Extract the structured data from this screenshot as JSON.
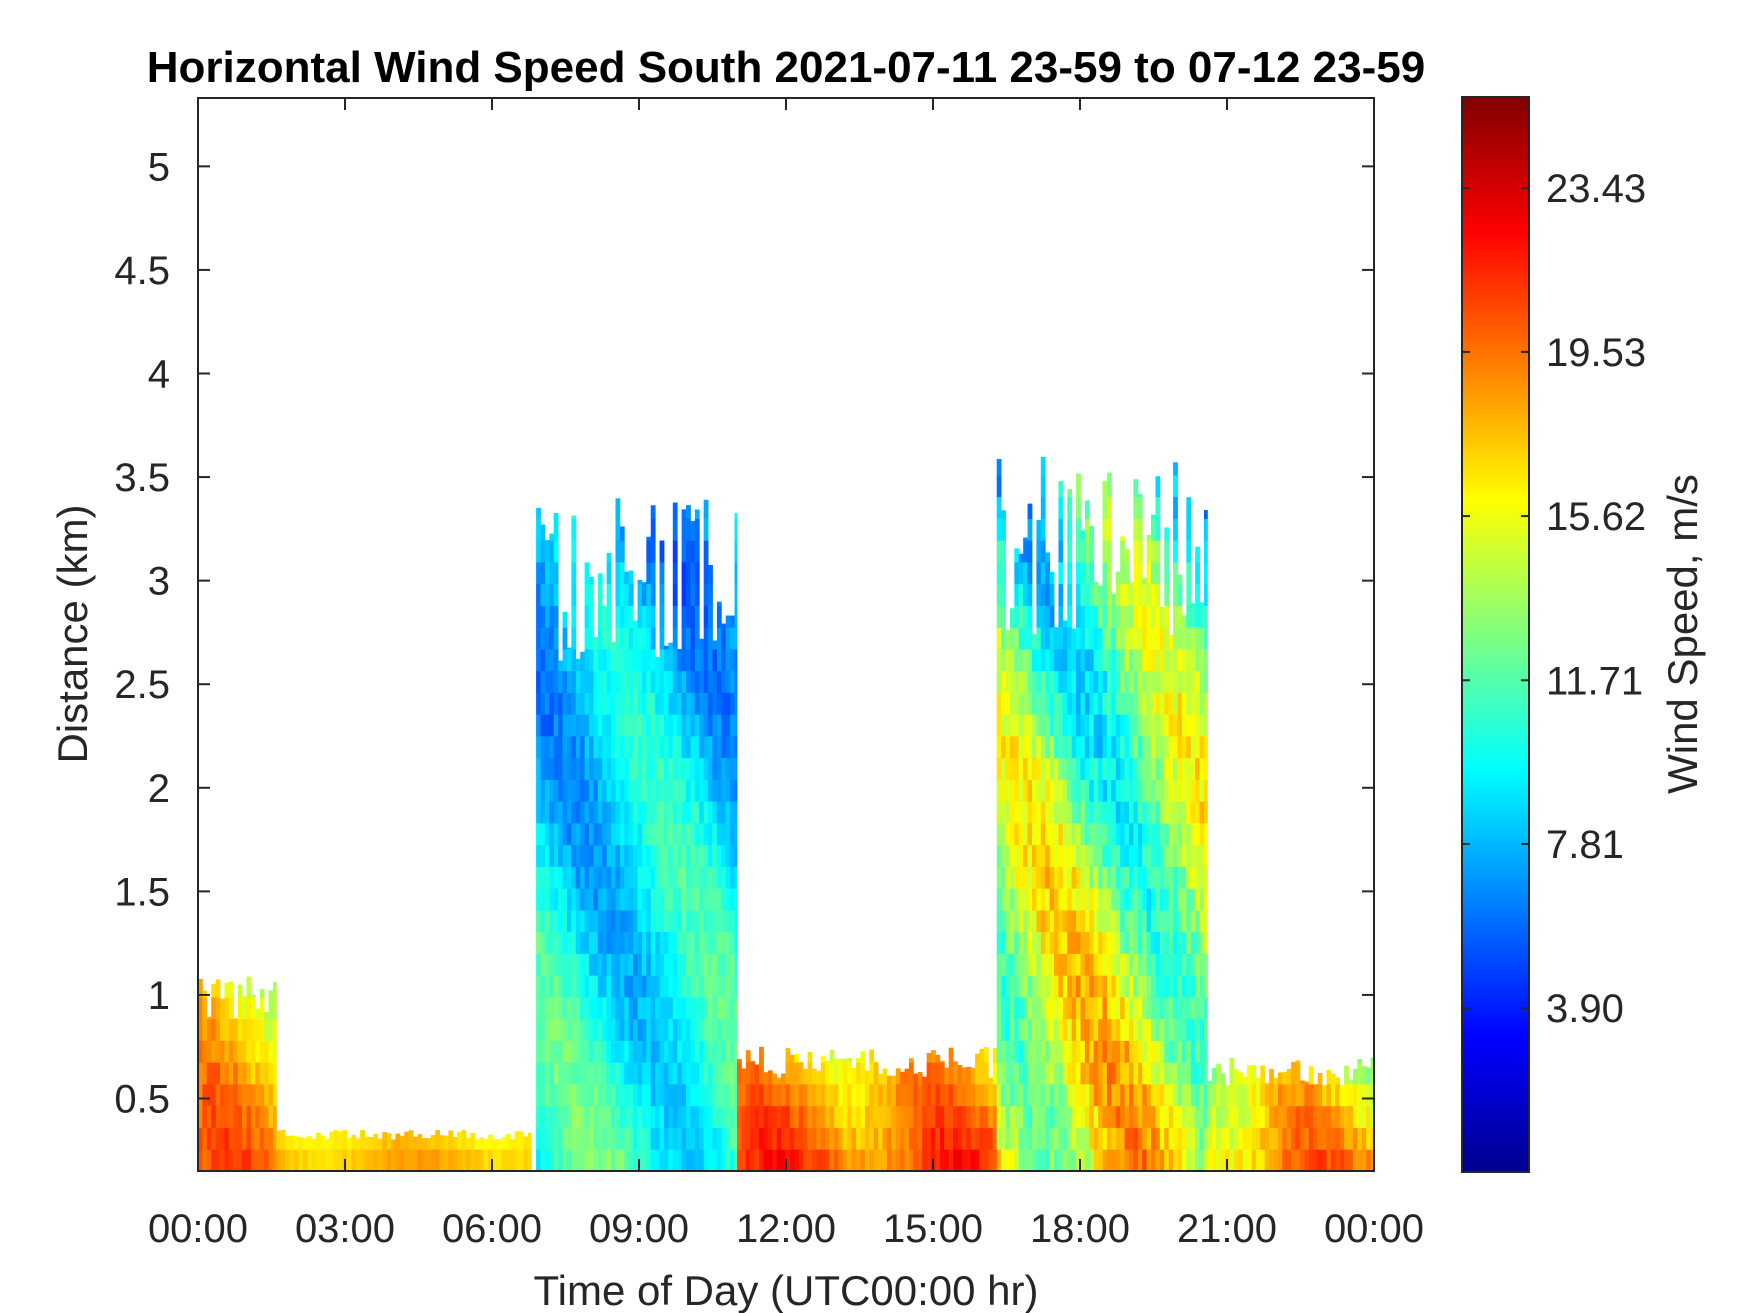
{
  "chart_data": {
    "type": "heatmap",
    "title": "Horizontal Wind Speed South 2021-07-11 23-59 to 07-12 23-59",
    "xlabel": "Time of Day (UTC00:00 hr)",
    "ylabel": "Distance (km)",
    "x_tick_labels": [
      "00:00",
      "03:00",
      "06:00",
      "09:00",
      "12:00",
      "15:00",
      "18:00",
      "21:00",
      "00:00"
    ],
    "x_range_hours": [
      0,
      24
    ],
    "y_tick_labels": [
      "0.5",
      "1",
      "1.5",
      "2",
      "2.5",
      "3",
      "3.5",
      "4",
      "4.5",
      "5"
    ],
    "y_tick_values": [
      0.5,
      1,
      1.5,
      2,
      2.5,
      3,
      3.5,
      4,
      4.5,
      5
    ],
    "ylim": [
      0.15,
      5.33
    ],
    "colorbar": {
      "label": "Wind Speed, m/s",
      "tick_labels": [
        "3.90",
        "7.81",
        "11.71",
        "15.62",
        "19.53",
        "23.43"
      ],
      "tick_values": [
        3.9,
        7.81,
        11.71,
        15.62,
        19.53,
        23.43
      ],
      "range": [
        0,
        25.6
      ],
      "colormap": "jet"
    },
    "grid": false,
    "regions": [
      {
        "name": "early-morning-low-level",
        "x_hours": [
          0,
          1.6
        ],
        "y_km": [
          0.15,
          1.1
        ],
        "speed_low_ms": 13,
        "speed_high_ms": 22
      },
      {
        "name": "night-surface-jet",
        "x_hours": [
          1.6,
          6.8
        ],
        "y_km": [
          0.15,
          0.35
        ],
        "speed_low_ms": 15,
        "speed_high_ms": 19
      },
      {
        "name": "morning-mixed-layer",
        "x_hours": [
          6.9,
          11.0
        ],
        "y_km": [
          0.15,
          3.4
        ],
        "speed_low_ms": 4,
        "speed_high_ms": 14
      },
      {
        "name": "midday-low-level-jet",
        "x_hours": [
          11.0,
          16.3
        ],
        "y_km": [
          0.15,
          0.75
        ],
        "speed_low_ms": 14,
        "speed_high_ms": 23
      },
      {
        "name": "afternoon-boundary-layer",
        "x_hours": [
          16.3,
          20.6
        ],
        "y_km": [
          0.15,
          3.6
        ],
        "speed_low_ms": 5,
        "speed_high_ms": 21
      },
      {
        "name": "evening-low-level",
        "x_hours": [
          20.6,
          24.0
        ],
        "y_km": [
          0.15,
          0.7
        ],
        "speed_low_ms": 11,
        "speed_high_ms": 22
      }
    ]
  }
}
